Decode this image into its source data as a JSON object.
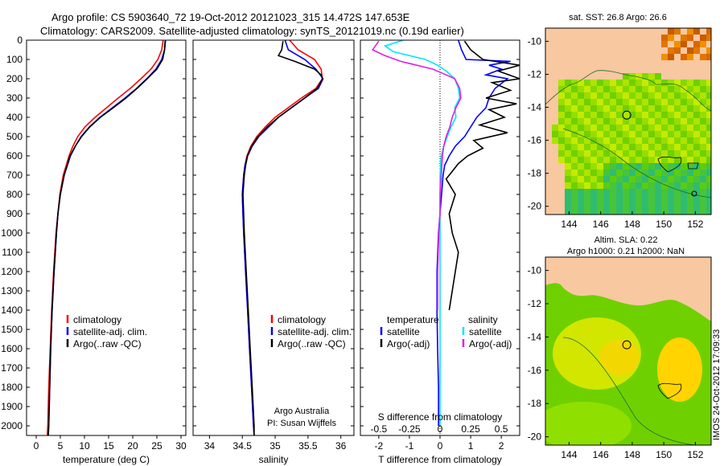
{
  "header": {
    "line1": "Argo profile: CS 5903640_72 19-Oct-2012 20121023_315 14.472S 147.653E",
    "line2": "Climatology: CARS2009. Satellite-adjusted climatology: synTS_20121019.nc (0.19d earlier)"
  },
  "colors": {
    "climatology": "#ff0000",
    "satellite": "#0000ff",
    "argo": "#000000",
    "salinity_satellite": "#00e5ff",
    "salinity_argo": "#e020e0",
    "land": "#f8c8a0",
    "sea_green": "#7fdc20"
  },
  "chart_data": [
    {
      "type": "line",
      "id": "temperature",
      "xlabel": "temperature (deg C)",
      "ylabel": "",
      "xlim": [
        -2,
        31
      ],
      "ylim": [
        2050,
        0
      ],
      "xticks": [
        0,
        5,
        10,
        15,
        20,
        25,
        30
      ],
      "yticks": [
        0,
        100,
        200,
        300,
        400,
        500,
        600,
        700,
        800,
        900,
        1000,
        1100,
        1200,
        1300,
        1400,
        1500,
        1600,
        1700,
        1800,
        1900,
        2000
      ],
      "legend": [
        "climatology",
        "satellite-adj. clim.",
        "Argo(..raw -QC)"
      ],
      "series": [
        {
          "name": "climatology",
          "color_key": "climatology",
          "depth": [
            0,
            50,
            100,
            150,
            200,
            250,
            300,
            350,
            400,
            450,
            500,
            550,
            600,
            700,
            800,
            900,
            1000,
            1200,
            1400,
            1600,
            1800,
            2000,
            2050
          ],
          "values": [
            26.3,
            26.0,
            25.2,
            23.8,
            21.7,
            19.5,
            17.0,
            14.6,
            12.2,
            10.1,
            8.6,
            7.6,
            6.8,
            5.6,
            4.9,
            4.5,
            4.1,
            3.6,
            3.2,
            2.9,
            2.6,
            2.4,
            2.3
          ]
        },
        {
          "name": "satellite-adj. clim.",
          "color_key": "satellite",
          "depth": [
            0,
            50,
            100,
            150,
            200,
            250,
            300,
            350,
            400,
            450,
            500,
            550,
            600,
            700,
            800,
            900,
            1000,
            1200,
            1400,
            1600,
            1800,
            2000,
            2050
          ],
          "values": [
            26.8,
            26.6,
            26.0,
            24.8,
            22.9,
            20.8,
            18.4,
            15.8,
            13.2,
            11.0,
            9.3,
            8.1,
            7.1,
            5.8,
            5.0,
            4.5,
            4.2,
            3.7,
            3.3,
            3.0,
            2.8,
            2.6,
            2.5
          ]
        },
        {
          "name": "Argo(..raw -QC)",
          "color_key": "argo",
          "depth": [
            5,
            50,
            100,
            150,
            200,
            250,
            300,
            350,
            400,
            450,
            500,
            550,
            600,
            700,
            800,
            900,
            1000,
            1200,
            1400,
            1600,
            1800,
            2000,
            2050
          ],
          "values": [
            26.7,
            26.6,
            26.2,
            25.0,
            23.0,
            20.9,
            18.6,
            16.0,
            13.3,
            11.1,
            9.4,
            8.1,
            7.0,
            5.8,
            5.0,
            4.5,
            4.2,
            3.7,
            3.3,
            3.0,
            2.8,
            2.6,
            2.5
          ]
        }
      ]
    },
    {
      "type": "line",
      "id": "salinity",
      "xlabel": "salinity",
      "xlim": [
        33.75,
        36.2
      ],
      "ylim": [
        2050,
        0
      ],
      "xticks": [
        34,
        34.5,
        35,
        35.5,
        36
      ],
      "legend": [
        "climatology",
        "satellite-adj. clim.",
        "Argo(..raw -QC)"
      ],
      "annotation": [
        "Argo Australia",
        "PI: Susan Wijffels"
      ],
      "series": [
        {
          "name": "climatology",
          "color_key": "climatology",
          "depth": [
            0,
            50,
            100,
            150,
            200,
            250,
            300,
            350,
            400,
            450,
            500,
            550,
            600,
            650,
            700,
            800,
            900,
            1000,
            1200,
            1400,
            1600,
            1800,
            2000,
            2050
          ],
          "values": [
            35.22,
            35.35,
            35.6,
            35.7,
            35.72,
            35.62,
            35.4,
            35.2,
            35.0,
            34.85,
            34.72,
            34.63,
            34.57,
            34.54,
            34.52,
            34.5,
            34.51,
            34.52,
            34.55,
            34.58,
            34.61,
            34.64,
            34.67,
            34.68
          ]
        },
        {
          "name": "satellite-adj. clim.",
          "color_key": "satellite",
          "depth": [
            0,
            50,
            100,
            150,
            200,
            250,
            300,
            350,
            400,
            450,
            500,
            550,
            600,
            650,
            700,
            800,
            900,
            1000,
            1200,
            1400,
            1600,
            1800,
            2000,
            2050
          ],
          "values": [
            35.15,
            35.2,
            35.45,
            35.62,
            35.73,
            35.66,
            35.45,
            35.25,
            35.05,
            34.9,
            34.75,
            34.65,
            34.58,
            34.54,
            34.52,
            34.5,
            34.51,
            34.52,
            34.55,
            34.58,
            34.61,
            34.64,
            34.67,
            34.68
          ]
        },
        {
          "name": "Argo(..raw -QC)",
          "color_key": "argo",
          "depth": [
            5,
            50,
            80,
            110,
            150,
            180,
            200,
            250,
            300,
            350,
            400,
            450,
            500,
            550,
            600,
            650,
            700,
            800,
            900,
            1000,
            1200,
            1400,
            1600,
            1800,
            2000,
            2050
          ],
          "values": [
            35.12,
            35.1,
            35.05,
            35.3,
            35.6,
            35.7,
            35.72,
            35.64,
            35.45,
            35.25,
            35.05,
            34.88,
            34.74,
            34.64,
            34.58,
            34.55,
            34.53,
            34.51,
            34.52,
            34.53,
            34.56,
            34.59,
            34.62,
            34.65,
            34.68,
            34.68
          ]
        }
      ]
    },
    {
      "type": "line",
      "id": "difference",
      "xlabel": "T difference from climatology",
      "x2label": "S difference from climatology",
      "xlim": [
        -2.6,
        2.6
      ],
      "ylim": [
        2050,
        0
      ],
      "xticks": [
        -2,
        -1,
        0,
        1,
        2
      ],
      "x2ticks": [
        -0.5,
        -0.25,
        0,
        0.25,
        0.5
      ],
      "x2tick_labels": [
        "-0.5",
        "-0.25",
        "0",
        "0.25",
        "0.5"
      ],
      "legend_temperature_title": "temperature",
      "legend_salinity_title": "salinity",
      "legend": [
        "satellite",
        "Argo(-adj)",
        "satellite",
        "Argo(-adj)"
      ],
      "series": [
        {
          "name": "T satellite",
          "color_key": "satellite",
          "depth": [
            0,
            50,
            100,
            110,
            130,
            150,
            180,
            200,
            250,
            300,
            350,
            400,
            450,
            500,
            550,
            600,
            650,
            700,
            800,
            900,
            1000,
            1200,
            1400,
            1600,
            1800,
            2000
          ],
          "values": [
            0.6,
            0.7,
            0.85,
            2.3,
            1.6,
            2.0,
            1.5,
            2.2,
            1.8,
            1.6,
            1.5,
            1.2,
            1.0,
            0.8,
            0.5,
            0.3,
            0.15,
            0.1,
            0.05,
            0.0,
            -0.05,
            -0.1,
            -0.1,
            -0.08,
            -0.05,
            -0.05
          ]
        },
        {
          "name": "T Argo(-adj)",
          "color_key": "argo",
          "depth": [
            5,
            50,
            100,
            130,
            160,
            200,
            220,
            260,
            300,
            330,
            360,
            400,
            440,
            480,
            520,
            560,
            600,
            640,
            680,
            720,
            800,
            900,
            1000,
            1100,
            1200,
            1300,
            1400
          ],
          "values": [
            0.8,
            1.0,
            1.4,
            2.6,
            1.9,
            2.6,
            1.7,
            2.3,
            1.5,
            2.5,
            1.6,
            2.1,
            1.3,
            2.2,
            1.1,
            1.4,
            0.9,
            0.6,
            0.4,
            0.2,
            0.5,
            0.3,
            0.4,
            0.6,
            0.5,
            0.4,
            0.3
          ]
        },
        {
          "name": "S satellite",
          "color_key": "salinity_satellite",
          "depth": [
            0,
            30,
            60,
            100,
            130,
            160,
            200,
            250,
            300,
            350,
            400,
            450,
            500,
            550,
            600,
            700,
            800,
            900,
            1000,
            1200,
            1400,
            1600,
            1800,
            2000
          ],
          "values": [
            -0.3,
            -0.45,
            -0.38,
            -0.12,
            -0.02,
            0.05,
            0.12,
            0.15,
            0.16,
            0.12,
            0.13,
            0.09,
            0.06,
            0.03,
            0.01,
            0.0,
            0.0,
            0.0,
            0.0,
            0.0,
            0.0,
            0.0,
            0.0,
            0.0
          ]
        },
        {
          "name": "S Argo(-adj)",
          "color_key": "salinity_argo",
          "depth": [
            5,
            50,
            80,
            110,
            150,
            180,
            200,
            250,
            300,
            350,
            400,
            450,
            500,
            550,
            600,
            700,
            800,
            900,
            1000,
            1200,
            1400
          ],
          "values": [
            -0.5,
            -0.55,
            -0.45,
            -0.32,
            -0.06,
            0.05,
            0.12,
            0.16,
            0.17,
            0.13,
            0.1,
            0.08,
            0.05,
            0.03,
            0.02,
            0.01,
            0.0,
            0.0,
            -0.01,
            -0.02,
            -0.02
          ]
        }
      ]
    },
    {
      "type": "heatmap",
      "id": "sst_map",
      "title": "sat. SST: 26.8  Argo: 26.6",
      "xlim": [
        142.5,
        153
      ],
      "ylim": [
        -20.5,
        -9.2
      ],
      "xticks": [
        144,
        146,
        148,
        150,
        152
      ],
      "yticks": [
        -10,
        -12,
        -14,
        -16,
        -18,
        -20
      ],
      "marker": {
        "lon": 147.653,
        "lat": -14.472
      }
    },
    {
      "type": "heatmap",
      "id": "sla_map",
      "title_line1": "Altim. SLA: 0.22",
      "title_line2": "Argo h1000: 0.21 h2000: NaN",
      "xlim": [
        142.5,
        153
      ],
      "ylim": [
        -20.5,
        -9.2
      ],
      "xticks": [
        144,
        146,
        148,
        150,
        152
      ],
      "yticks": [
        -10,
        -12,
        -14,
        -16,
        -18,
        -20
      ],
      "marker": {
        "lon": 147.653,
        "lat": -14.472
      }
    }
  ],
  "footer": {
    "stamp": "IMOS 24-Oct-2012 17:09:33"
  }
}
